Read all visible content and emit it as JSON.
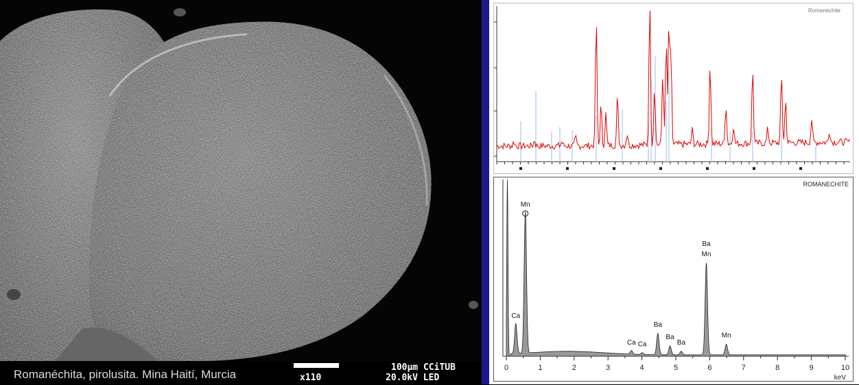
{
  "sem_image": {
    "caption": "Romanéchita, pirolusita. Mina Haití, Murcia",
    "scale_label": "100µm CCiTUB",
    "magnification": "x110",
    "voltage": "20.0kV LED"
  },
  "xrd_panel": {
    "title": "Romanéchite"
  },
  "eds_panel": {
    "title": "ROMANECHITE",
    "x_unit": "keV",
    "x_ticks": [
      "0",
      "1",
      "2",
      "3",
      "4",
      "5",
      "6",
      "7",
      "8",
      "9",
      "10"
    ],
    "peaks": [
      {
        "label": "Mn",
        "energy": 0.56,
        "height": 0.8
      },
      {
        "label": "Ca",
        "energy": 0.28,
        "height": 0.17
      },
      {
        "label": "Ca",
        "energy": 3.69,
        "height": 0.02
      },
      {
        "label": "Ba",
        "energy": 4.47,
        "height": 0.12
      },
      {
        "label": "Ca",
        "energy": 4.01,
        "height": 0.01
      },
      {
        "label": "Ba",
        "energy": 4.83,
        "height": 0.05
      },
      {
        "label": "Ba",
        "energy": 5.16,
        "height": 0.02
      },
      {
        "label": "Mn",
        "energy": 5.9,
        "height": 0.52
      },
      {
        "label": "Ba",
        "energy": 5.9,
        "height": 0.52
      },
      {
        "label": "Mn",
        "energy": 6.49,
        "height": 0.06
      }
    ]
  },
  "colors": {
    "xrd_measured": "#e00000",
    "xrd_reference": "#a8c8e8",
    "eds_fill": "#999999",
    "divider": "#1a1a8c"
  }
}
